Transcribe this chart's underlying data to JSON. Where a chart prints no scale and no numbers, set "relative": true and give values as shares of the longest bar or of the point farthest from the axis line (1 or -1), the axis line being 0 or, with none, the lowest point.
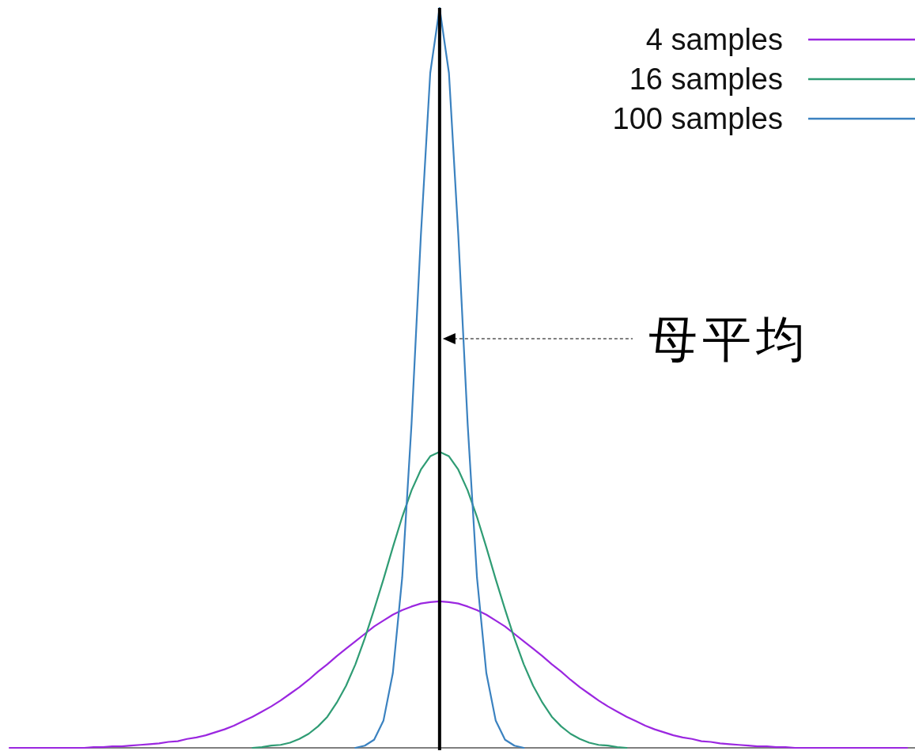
{
  "chart_data": {
    "type": "line",
    "relative": true,
    "legend": "top right",
    "categories": [
      null,
      null,
      null,
      null,
      null,
      null,
      null,
      null,
      null,
      null,
      null,
      null,
      null,
      null,
      null,
      null,
      null,
      null,
      null,
      null,
      null,
      null,
      null,
      null,
      null,
      null,
      null,
      null,
      null,
      null,
      null,
      null,
      null,
      null,
      null,
      null,
      null,
      null,
      null,
      null,
      null,
      null,
      null,
      null,
      null,
      null,
      null,
      null,
      null,
      null,
      null,
      null,
      null,
      null,
      null,
      null,
      null,
      null,
      null,
      null,
      null,
      null,
      null,
      null,
      null,
      null,
      null,
      null,
      null,
      null,
      null,
      null,
      null,
      null,
      null,
      null,
      null,
      null,
      null,
      null,
      null,
      null,
      null,
      null,
      null,
      null,
      null,
      null,
      null,
      null,
      null,
      null,
      null,
      null,
      null,
      null,
      null
    ],
    "series": [
      {
        "name": "4 samples",
        "color": "#9b27e0",
        "values": [
          0,
          0,
          0,
          0,
          0,
          0,
          0,
          0,
          0,
          0.001,
          0.001,
          0.002,
          0.002,
          0.003,
          0.004,
          0.005,
          0.006,
          0.008,
          0.009,
          0.012,
          0.014,
          0.017,
          0.021,
          0.025,
          0.03,
          0.036,
          0.042,
          0.049,
          0.056,
          0.064,
          0.073,
          0.082,
          0.092,
          0.103,
          0.113,
          0.124,
          0.134,
          0.144,
          0.154,
          0.164,
          0.172,
          0.18,
          0.186,
          0.191,
          0.195,
          0.197,
          0.198,
          0.197,
          0.195,
          0.191,
          0.186,
          0.18,
          0.172,
          0.164,
          0.154,
          0.144,
          0.134,
          0.124,
          0.113,
          0.103,
          0.092,
          0.082,
          0.073,
          0.064,
          0.056,
          0.049,
          0.042,
          0.036,
          0.03,
          0.025,
          0.021,
          0.017,
          0.014,
          0.012,
          0.009,
          0.008,
          0.006,
          0.005,
          0.004,
          0.003,
          0.002,
          0.002,
          0.001,
          0.001,
          0,
          0,
          0,
          0,
          0,
          0,
          0,
          0,
          0,
          0,
          0,
          0,
          0
        ]
      },
      {
        "name": "16 samples",
        "color": "#2f9c74",
        "values": [
          null,
          null,
          null,
          null,
          null,
          null,
          null,
          null,
          null,
          null,
          null,
          null,
          null,
          null,
          null,
          null,
          null,
          null,
          null,
          null,
          null,
          null,
          null,
          null,
          null,
          null,
          0,
          0.001,
          0.003,
          0.004,
          0.007,
          0.012,
          0.019,
          0.029,
          0.042,
          0.061,
          0.084,
          0.113,
          0.148,
          0.187,
          0.228,
          0.271,
          0.312,
          0.348,
          0.376,
          0.394,
          0.4,
          0.394,
          0.376,
          0.348,
          0.312,
          0.271,
          0.228,
          0.187,
          0.148,
          0.113,
          0.084,
          0.061,
          0.042,
          0.029,
          0.019,
          0.012,
          0.007,
          0.004,
          0.003,
          0.001,
          0,
          null,
          null,
          null,
          null,
          null,
          null,
          null,
          null,
          null,
          null,
          null,
          null,
          null,
          null,
          null,
          null,
          null,
          null,
          null,
          null,
          null,
          null,
          null,
          null,
          null,
          null,
          null,
          null,
          null,
          null
        ]
      },
      {
        "name": "100 samples",
        "color": "#3b82c0",
        "values": [
          null,
          null,
          null,
          null,
          null,
          null,
          null,
          null,
          null,
          null,
          null,
          null,
          null,
          null,
          null,
          null,
          null,
          null,
          null,
          null,
          null,
          null,
          null,
          null,
          null,
          null,
          null,
          null,
          null,
          null,
          null,
          null,
          null,
          null,
          null,
          null,
          null,
          0,
          0.003,
          0.011,
          0.037,
          0.101,
          0.23,
          0.438,
          0.693,
          0.912,
          1,
          0.912,
          0.693,
          0.438,
          0.23,
          0.101,
          0.037,
          0.011,
          0.003,
          0,
          null,
          null,
          null,
          null,
          null,
          null,
          null,
          null,
          null,
          null,
          null,
          null,
          null,
          null,
          null,
          null,
          null,
          null,
          null,
          null,
          null,
          null,
          null,
          null,
          null,
          null,
          null,
          null,
          null,
          null,
          null,
          null,
          null,
          null,
          null,
          null,
          null,
          null,
          null,
          null,
          null
        ]
      }
    ],
    "annotations": [
      "母平均"
    ]
  }
}
